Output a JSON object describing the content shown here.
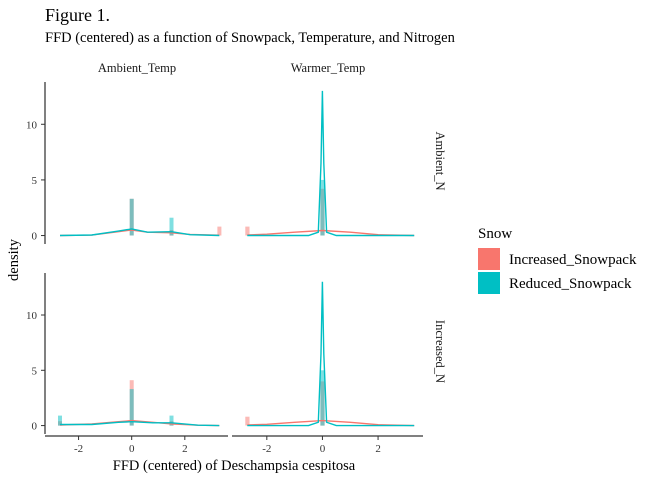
{
  "chart_data": {
    "type": "histogram-density",
    "title": "Figure 1.",
    "subtitle": "FFD (centered) as a function of Snowpack, Temperature, and Nitrogen",
    "xlabel": "FFD (centered) of Deschampsia cespitosa",
    "ylabel": "density",
    "xlim": [
      -3.0,
      3.4
    ],
    "ylim": [
      -0.4,
      13.8
    ],
    "x_ticks": [
      -2,
      0,
      2
    ],
    "y_ticks": [
      0,
      5,
      10
    ],
    "grid": false,
    "legend": {
      "title": "Snow",
      "position": "right",
      "entries": [
        {
          "name": "Increased_Snowpack",
          "color": "#F8766D"
        },
        {
          "name": "Reduced_Snowpack",
          "color": "#00BFC4"
        }
      ]
    },
    "facets": {
      "columns": [
        "Ambient_Temp",
        "Warmer_Temp"
      ],
      "rows": [
        "Ambient_N",
        "Increased_N"
      ]
    },
    "panels": [
      {
        "row": 0,
        "col": 0,
        "bars": [
          {
            "series": 0,
            "x": 0.0,
            "height": 3.3
          },
          {
            "series": 0,
            "x": 1.5,
            "height": 0.5
          },
          {
            "series": 0,
            "x": 3.3,
            "height": 0.8
          },
          {
            "series": 1,
            "x": 0.0,
            "height": 3.3
          },
          {
            "series": 1,
            "x": 1.5,
            "height": 1.6
          }
        ],
        "curves": [
          {
            "series": 0,
            "points": [
              [
                -2.7,
                0
              ],
              [
                -1.5,
                0.04
              ],
              [
                -0.5,
                0.35
              ],
              [
                0,
                0.5
              ],
              [
                0.6,
                0.3
              ],
              [
                1.5,
                0.25
              ],
              [
                2.2,
                0.1
              ],
              [
                3.3,
                0.03
              ]
            ]
          },
          {
            "series": 1,
            "points": [
              [
                -2.7,
                0
              ],
              [
                -1.5,
                0.05
              ],
              [
                -0.5,
                0.4
              ],
              [
                0,
                0.6
              ],
              [
                0.6,
                0.3
              ],
              [
                1.5,
                0.35
              ],
              [
                2.2,
                0.08
              ],
              [
                3.3,
                0
              ]
            ]
          }
        ]
      },
      {
        "row": 0,
        "col": 1,
        "bars": [
          {
            "series": 0,
            "x": -2.7,
            "height": 0.8
          },
          {
            "series": 0,
            "x": 0.0,
            "height": 4.2
          },
          {
            "series": 1,
            "x": 0.0,
            "height": 5.0
          }
        ],
        "curves": [
          {
            "series": 0,
            "points": [
              [
                -2.7,
                0.05
              ],
              [
                -2,
                0.12
              ],
              [
                -1,
                0.3
              ],
              [
                0,
                0.45
              ],
              [
                1,
                0.3
              ],
              [
                2,
                0.08
              ],
              [
                3.3,
                0
              ]
            ]
          },
          {
            "series": 1,
            "points": [
              [
                -2.7,
                0
              ],
              [
                -0.5,
                0
              ],
              [
                -0.15,
                0.3
              ],
              [
                -0.05,
                6.5
              ],
              [
                0,
                13.0
              ],
              [
                0.05,
                6.5
              ],
              [
                0.15,
                0.3
              ],
              [
                0.5,
                0
              ],
              [
                3.3,
                0
              ]
            ]
          }
        ]
      },
      {
        "row": 1,
        "col": 0,
        "bars": [
          {
            "series": 0,
            "x": -2.7,
            "height": 0.4
          },
          {
            "series": 0,
            "x": 0.0,
            "height": 4.1
          },
          {
            "series": 0,
            "x": 1.5,
            "height": 0.4
          },
          {
            "series": 1,
            "x": -2.7,
            "height": 0.9
          },
          {
            "series": 1,
            "x": 0.0,
            "height": 3.3
          },
          {
            "series": 1,
            "x": 1.5,
            "height": 0.9
          }
        ],
        "curves": [
          {
            "series": 0,
            "points": [
              [
                -2.7,
                0.05
              ],
              [
                -1.5,
                0.15
              ],
              [
                -0.5,
                0.35
              ],
              [
                0,
                0.45
              ],
              [
                0.8,
                0.3
              ],
              [
                1.5,
                0.15
              ],
              [
                2.5,
                0.03
              ],
              [
                3.3,
                0
              ]
            ]
          },
          {
            "series": 1,
            "points": [
              [
                -2.7,
                0.1
              ],
              [
                -1.5,
                0.1
              ],
              [
                -0.5,
                0.3
              ],
              [
                0,
                0.35
              ],
              [
                0.8,
                0.25
              ],
              [
                1.5,
                0.25
              ],
              [
                2.5,
                0.03
              ],
              [
                3.3,
                0
              ]
            ]
          }
        ]
      },
      {
        "row": 1,
        "col": 1,
        "bars": [
          {
            "series": 0,
            "x": -2.7,
            "height": 0.8
          },
          {
            "series": 0,
            "x": 0.0,
            "height": 4.0
          },
          {
            "series": 1,
            "x": 0.0,
            "height": 5.0
          }
        ],
        "curves": [
          {
            "series": 0,
            "points": [
              [
                -2.7,
                0.05
              ],
              [
                -2,
                0.12
              ],
              [
                -1,
                0.3
              ],
              [
                0,
                0.45
              ],
              [
                1,
                0.3
              ],
              [
                2,
                0.08
              ],
              [
                3.3,
                0
              ]
            ]
          },
          {
            "series": 1,
            "points": [
              [
                -2.7,
                0
              ],
              [
                -0.5,
                0
              ],
              [
                -0.15,
                0.3
              ],
              [
                -0.05,
                6.5
              ],
              [
                0,
                13.0
              ],
              [
                0.05,
                6.5
              ],
              [
                0.15,
                0.3
              ],
              [
                0.5,
                0
              ],
              [
                3.3,
                0
              ]
            ]
          }
        ]
      }
    ]
  }
}
